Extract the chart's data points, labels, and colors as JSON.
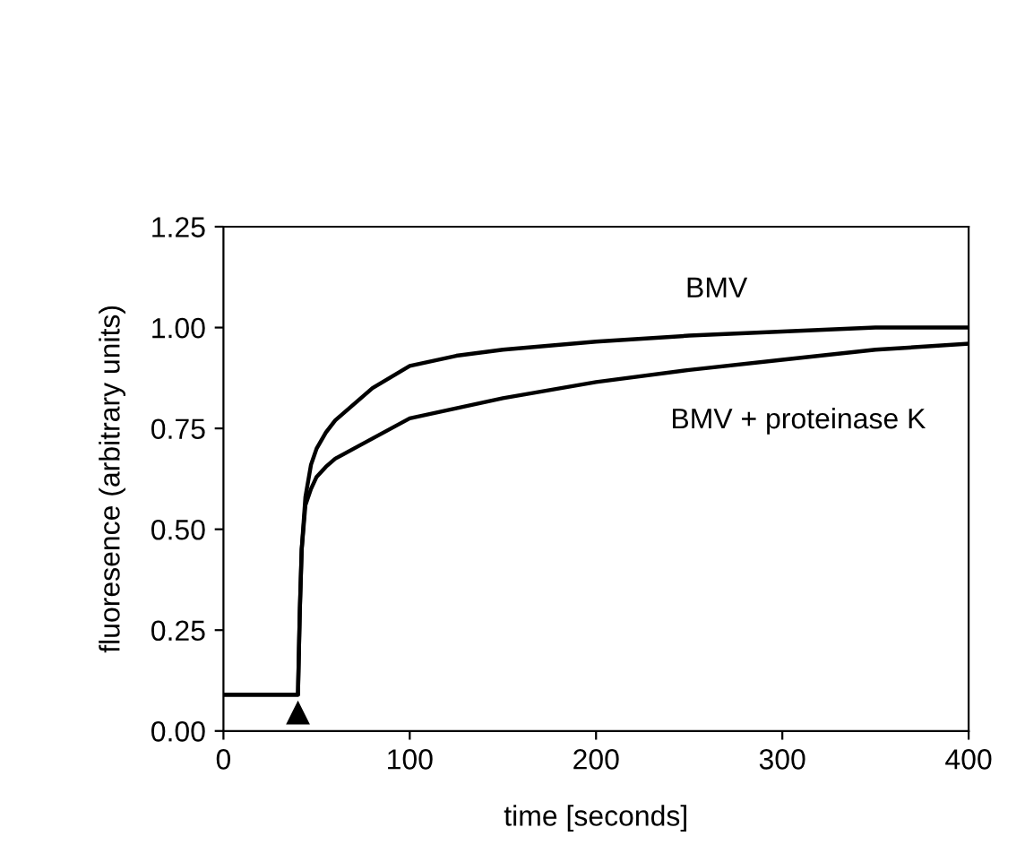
{
  "chart_data": {
    "type": "line",
    "xlabel": "time [seconds]",
    "ylabel": "fluoresence (arbitrary units)",
    "x": [
      0,
      10,
      20,
      30,
      38,
      40,
      41,
      42,
      44,
      47,
      50,
      55,
      60,
      70,
      80,
      100,
      125,
      150,
      200,
      250,
      300,
      350,
      400
    ],
    "series": [
      {
        "name": "BMV",
        "color": "#000000",
        "values": [
          0.09,
          0.09,
          0.09,
          0.09,
          0.09,
          0.09,
          0.3,
          0.45,
          0.58,
          0.66,
          0.7,
          0.74,
          0.77,
          0.81,
          0.85,
          0.905,
          0.93,
          0.945,
          0.965,
          0.98,
          0.99,
          1.0,
          1.0
        ]
      },
      {
        "name": "BMV + proteinase K",
        "color": "#000000",
        "values": [
          0.09,
          0.09,
          0.09,
          0.09,
          0.09,
          0.09,
          0.3,
          0.45,
          0.56,
          0.6,
          0.63,
          0.655,
          0.675,
          0.7,
          0.725,
          0.775,
          0.8,
          0.825,
          0.865,
          0.895,
          0.92,
          0.945,
          0.96
        ]
      }
    ],
    "xlim": [
      0,
      400
    ],
    "xticks": [
      0,
      100,
      200,
      300,
      400
    ],
    "ylim": [
      0,
      1.25
    ],
    "yticks": [
      {
        "value": 0,
        "label": "0.00"
      },
      {
        "value": 0.25,
        "label": "0.25"
      },
      {
        "value": 0.5,
        "label": "0.50"
      },
      {
        "value": 0.75,
        "label": "0.75"
      },
      {
        "value": 1,
        "label": "1.00"
      },
      {
        "value": 1.25,
        "label": "1.25"
      }
    ],
    "grid": false,
    "legend": false,
    "marker": "none",
    "line_style": "solid"
  }
}
